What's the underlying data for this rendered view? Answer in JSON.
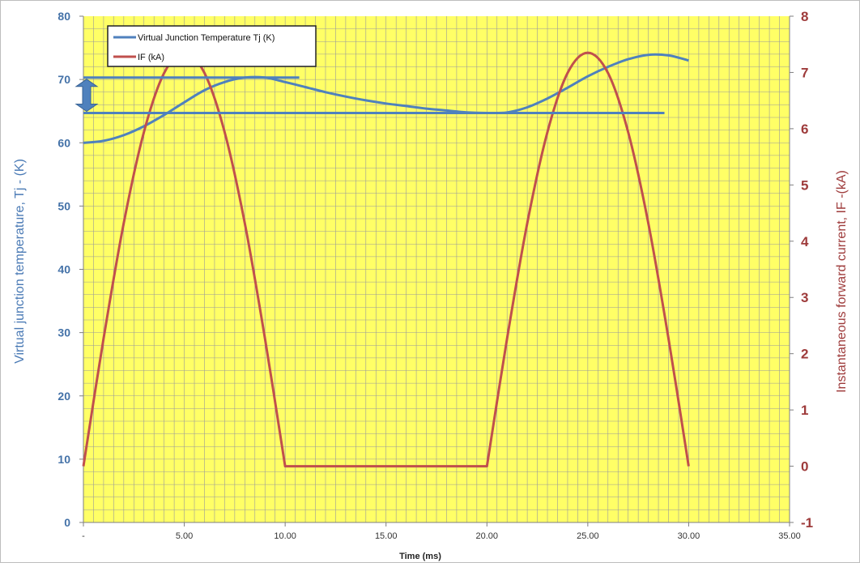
{
  "chart_data": {
    "type": "line",
    "xlabel": "Time (ms)",
    "ylabel_left": "Virtual junction temperature, Tj - (K)",
    "ylabel_right": "Instantaneous forward current, IF -(kA)",
    "xlim": [
      0,
      35
    ],
    "ylim_left": [
      0,
      80
    ],
    "ylim_right": [
      -1,
      8
    ],
    "x_ticks": [
      "-",
      "5.00",
      "10.00",
      "15.00",
      "20.00",
      "25.00",
      "30.00",
      "35.00"
    ],
    "y_left_ticks": [
      "0",
      "10",
      "20",
      "30",
      "40",
      "50",
      "60",
      "70",
      "80"
    ],
    "y_right_ticks": [
      "-1",
      "0",
      "1",
      "2",
      "3",
      "4",
      "5",
      "6",
      "7",
      "8"
    ],
    "grid": true,
    "legend_position": "top-left",
    "colors": {
      "plot_background": "#ffff66",
      "grid": "#9a9a9a",
      "tj": "#4f81bd",
      "if": "#c0504d",
      "left_axis_text": "#4a7ab5",
      "right_axis_text": "#9e3b3b"
    },
    "series": [
      {
        "name": "Virtual Junction Temperature Tj (K)",
        "axis": "left",
        "x": [
          0,
          1,
          2,
          3,
          4,
          5,
          6,
          7,
          8,
          9,
          10,
          11,
          12,
          13,
          14,
          15,
          16,
          17,
          18,
          19,
          20,
          21,
          22,
          23,
          24,
          25,
          26,
          27,
          28,
          29,
          30
        ],
        "y": [
          60,
          60.3,
          61.2,
          62.6,
          64.4,
          66.4,
          68.3,
          69.6,
          70.3,
          70.3,
          69.6,
          68.8,
          68.0,
          67.3,
          66.7,
          66.2,
          65.8,
          65.4,
          65.1,
          64.8,
          64.7,
          64.8,
          65.6,
          67.0,
          68.7,
          70.5,
          72.0,
          73.2,
          73.9,
          73.8,
          73.0
        ]
      },
      {
        "name": "IF (kA)",
        "axis": "right",
        "x": [
          0,
          1,
          2,
          3,
          4,
          5,
          6,
          7,
          8,
          9,
          10,
          11,
          12,
          13,
          14,
          15,
          16,
          17,
          18,
          19,
          20,
          21,
          22,
          23,
          24,
          25,
          26,
          27,
          28,
          29,
          30
        ],
        "y": [
          0,
          2.27,
          4.32,
          5.94,
          6.99,
          7.35,
          6.99,
          5.94,
          4.32,
          2.27,
          0,
          0,
          0,
          0,
          0,
          0,
          0,
          0,
          0,
          0,
          0,
          2.27,
          4.32,
          5.94,
          6.99,
          7.35,
          6.99,
          5.94,
          4.32,
          2.27,
          0
        ]
      }
    ],
    "annotations": {
      "upper_line": {
        "y": 70.3,
        "x_from": 0,
        "x_to": 10.7
      },
      "lower_line": {
        "y": 64.7,
        "x_from": 0,
        "x_to": 28.8
      }
    }
  }
}
